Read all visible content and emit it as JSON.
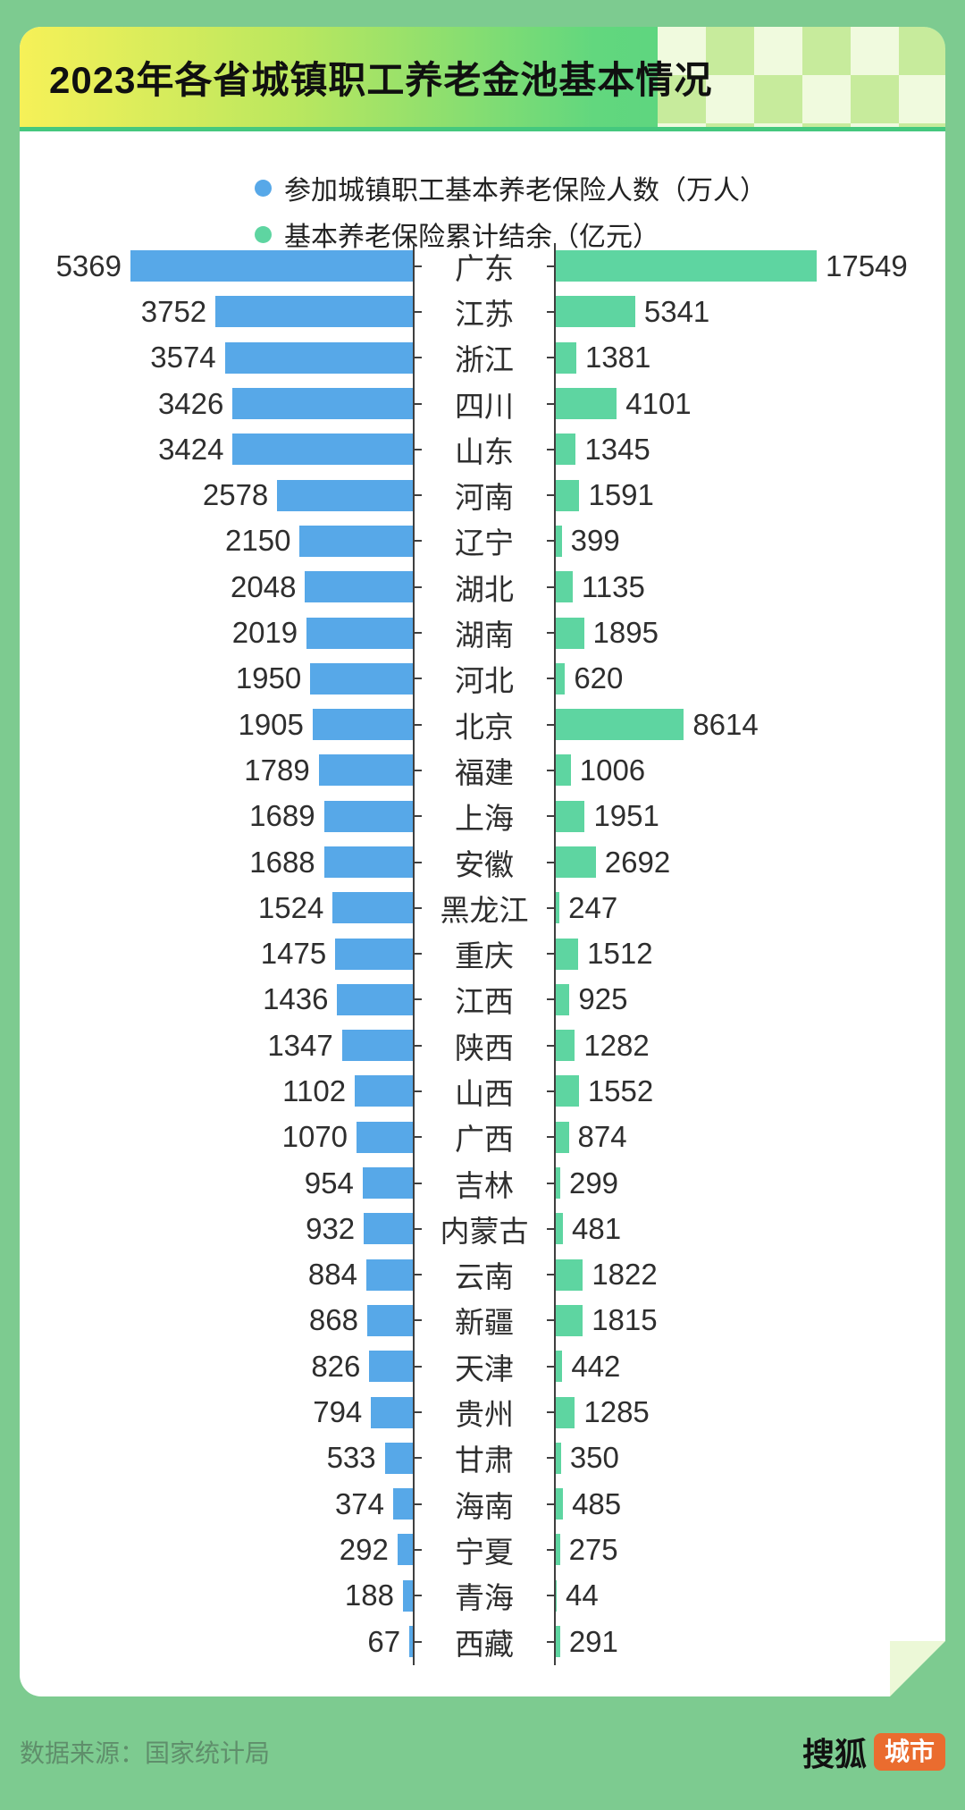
{
  "header": {
    "title": "2023年各省城镇职工养老金池基本情况"
  },
  "legend": [
    {
      "label": "参加城镇职工基本养老保险人数（万人）",
      "color": "#57a8e8"
    },
    {
      "label": "基本养老保险累计结余（亿元）",
      "color": "#5ed5a1"
    }
  ],
  "colors": {
    "page_background": "#7dcb90",
    "card": "#ffffff",
    "participants_bar": "#57a8e8",
    "balance_bar": "#5ed5a1",
    "header_gradient_left": "#f6f158",
    "header_gradient_right": "#4ed285",
    "checker_light": "#f0fade",
    "checker_green": "#c7eb9c",
    "axis": "#3f3f3f",
    "badge_orange": "#ea6c2f"
  },
  "footer": {
    "source": "数据来源：国家统计局",
    "brand": "搜狐",
    "brand_badge": "城市"
  },
  "chart_data": {
    "type": "bar",
    "orientation": "horizontal-diverging",
    "grid": false,
    "legend_position": "top-center",
    "categories": [
      "广东",
      "江苏",
      "浙江",
      "四川",
      "山东",
      "河南",
      "辽宁",
      "湖北",
      "湖南",
      "河北",
      "北京",
      "福建",
      "上海",
      "安徽",
      "黑龙江",
      "重庆",
      "江西",
      "陕西",
      "山西",
      "广西",
      "吉林",
      "内蒙古",
      "云南",
      "新疆",
      "天津",
      "贵州",
      "甘肃",
      "海南",
      "宁夏",
      "青海",
      "西藏"
    ],
    "series": [
      {
        "name": "参加城镇职工基本养老保险人数（万人）",
        "side": "left",
        "color": "#57a8e8",
        "values": [
          5369,
          3752,
          3574,
          3426,
          3424,
          2578,
          2150,
          2048,
          2019,
          1950,
          1905,
          1789,
          1689,
          1688,
          1524,
          1475,
          1436,
          1347,
          1102,
          1070,
          954,
          932,
          884,
          868,
          826,
          794,
          533,
          374,
          292,
          188,
          67
        ]
      },
      {
        "name": "基本养老保险累计结余（亿元）",
        "side": "right",
        "color": "#5ed5a1",
        "values": [
          17549,
          5341,
          1381,
          4101,
          1345,
          1591,
          399,
          1135,
          1895,
          620,
          8614,
          1006,
          1951,
          2692,
          247,
          1512,
          925,
          1282,
          1552,
          874,
          299,
          481,
          1822,
          1815,
          442,
          1285,
          350,
          485,
          275,
          44,
          291
        ]
      }
    ],
    "xlim_left": [
      0,
      5369
    ],
    "xlim_right": [
      0,
      17549
    ]
  }
}
